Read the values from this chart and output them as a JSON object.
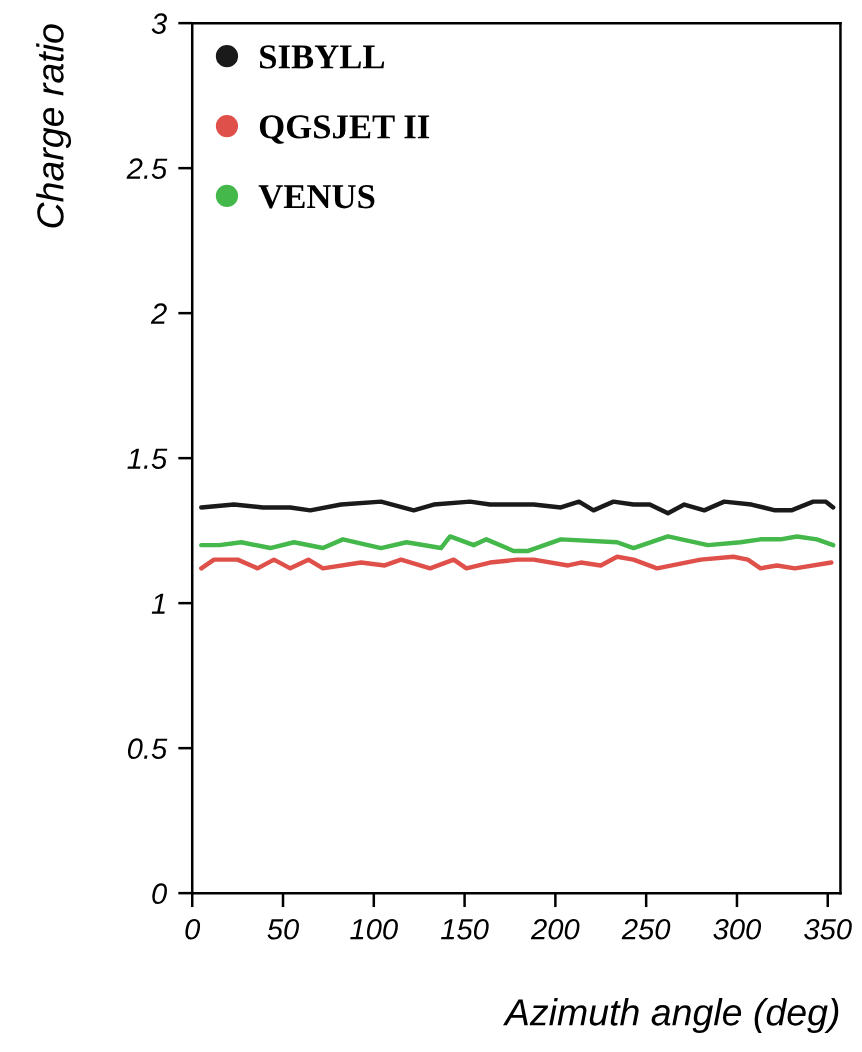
{
  "chart_data": {
    "type": "line",
    "xlabel": "Azimuth angle (deg)",
    "ylabel": "Charge ratio",
    "xlim": [
      0,
      357
    ],
    "ylim": [
      0,
      3
    ],
    "xticks": [
      0,
      50,
      100,
      150,
      200,
      250,
      300,
      350
    ],
    "yticks": [
      0,
      0.5,
      1,
      1.5,
      2,
      2.5,
      3
    ],
    "grid": false,
    "legend": "top left",
    "marker": "none",
    "line_style": "solid",
    "series": [
      {
        "name": "SIBYLL",
        "color": "#1a1a1a",
        "x": [
          5,
          23,
          39,
          54,
          65,
          82,
          104,
          122,
          133,
          153,
          164,
          179,
          188,
          203,
          213,
          221,
          232,
          243,
          252,
          262,
          271,
          282,
          293,
          308,
          321,
          330,
          342,
          349,
          353
        ],
        "values": [
          1.33,
          1.34,
          1.33,
          1.33,
          1.32,
          1.34,
          1.35,
          1.32,
          1.34,
          1.35,
          1.34,
          1.34,
          1.34,
          1.33,
          1.35,
          1.32,
          1.35,
          1.34,
          1.34,
          1.31,
          1.34,
          1.32,
          1.35,
          1.34,
          1.32,
          1.32,
          1.35,
          1.35,
          1.33
        ]
      },
      {
        "name": "QGSJET II",
        "color": "#e0504a",
        "x": [
          5,
          12,
          25,
          36,
          45,
          54,
          64,
          72,
          93,
          106,
          115,
          131,
          144,
          151,
          164,
          179,
          188,
          207,
          214,
          225,
          234,
          243,
          256,
          280,
          298,
          306,
          313,
          322,
          332,
          352
        ],
        "values": [
          1.12,
          1.15,
          1.15,
          1.12,
          1.15,
          1.12,
          1.15,
          1.12,
          1.14,
          1.13,
          1.15,
          1.12,
          1.15,
          1.12,
          1.14,
          1.15,
          1.15,
          1.13,
          1.14,
          1.13,
          1.16,
          1.15,
          1.12,
          1.15,
          1.16,
          1.15,
          1.12,
          1.13,
          1.12,
          1.14
        ]
      },
      {
        "name": "VENUS",
        "color": "#44b84a",
        "x": [
          5,
          15,
          27,
          43,
          56,
          72,
          83,
          104,
          118,
          137,
          142,
          155,
          162,
          177,
          185,
          203,
          234,
          243,
          262,
          284,
          302,
          313,
          324,
          333,
          344,
          353
        ],
        "values": [
          1.2,
          1.2,
          1.21,
          1.19,
          1.21,
          1.19,
          1.22,
          1.19,
          1.21,
          1.19,
          1.23,
          1.2,
          1.22,
          1.18,
          1.18,
          1.22,
          1.21,
          1.19,
          1.23,
          1.2,
          1.21,
          1.22,
          1.22,
          1.23,
          1.22,
          1.2
        ]
      }
    ]
  }
}
